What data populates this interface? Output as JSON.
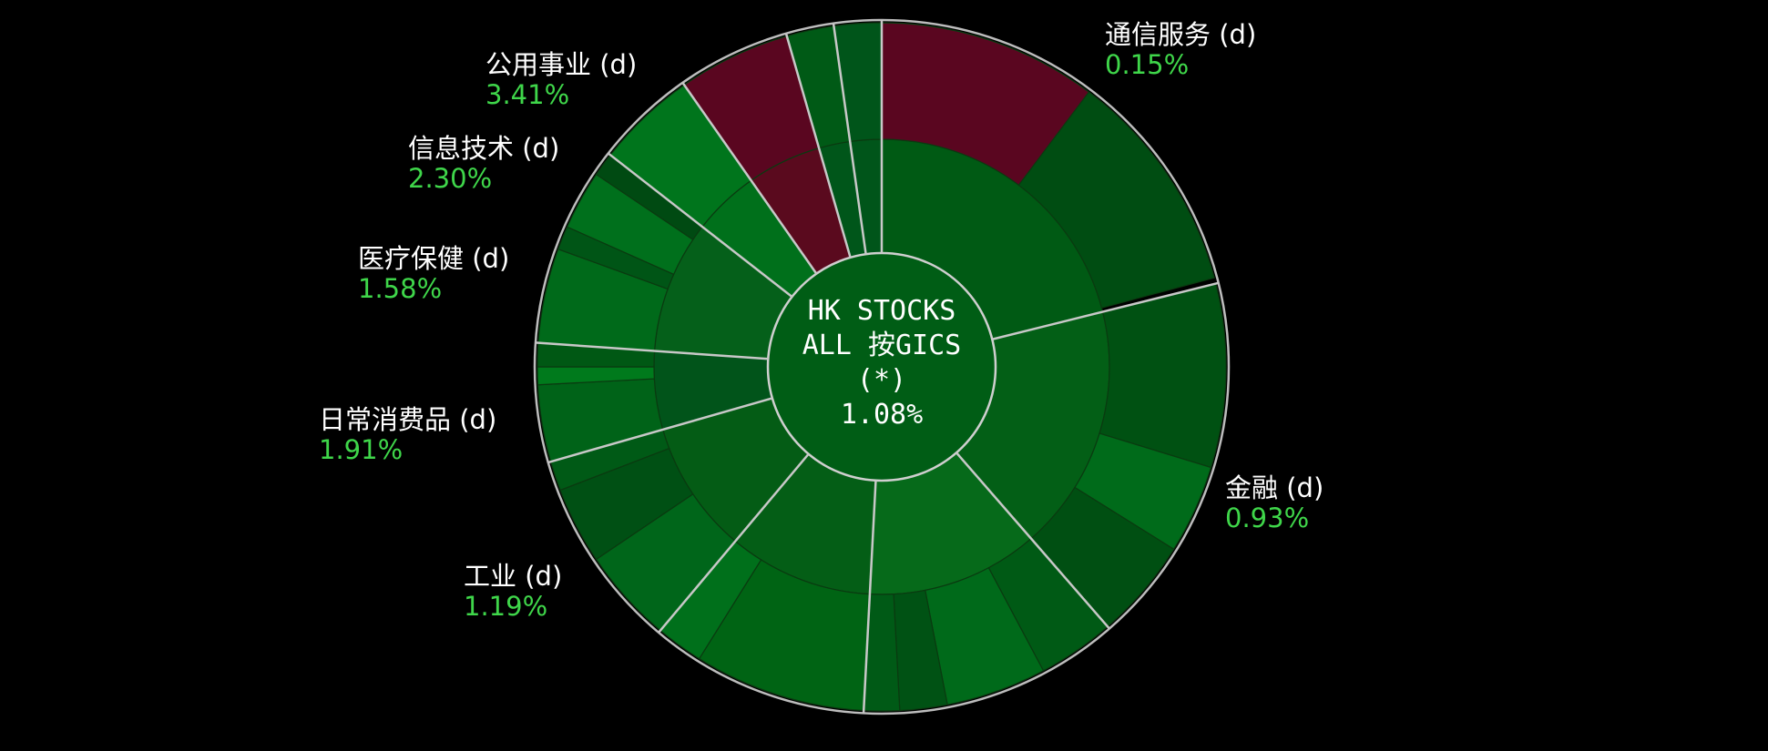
{
  "chart_data": {
    "type": "sunburst",
    "center": {
      "line1": "HK STOCKS",
      "line2": "ALL 按GICS",
      "line3": "(*)",
      "value": "1.08%"
    },
    "sectors": [
      {
        "name": "通信服务 (d)",
        "value": "0.15%"
      },
      {
        "name": "金融 (d)",
        "value": "0.93%"
      },
      {
        "name": "工业 (d)",
        "value": "1.19%"
      },
      {
        "name": "日常消费品 (d)",
        "value": "1.91%"
      },
      {
        "name": "医疗保健 (d)",
        "value": "1.58%"
      },
      {
        "name": "信息技术 (d)",
        "value": "2.30%"
      },
      {
        "name": "公用事业 (d)",
        "value": "3.41%"
      }
    ]
  }
}
